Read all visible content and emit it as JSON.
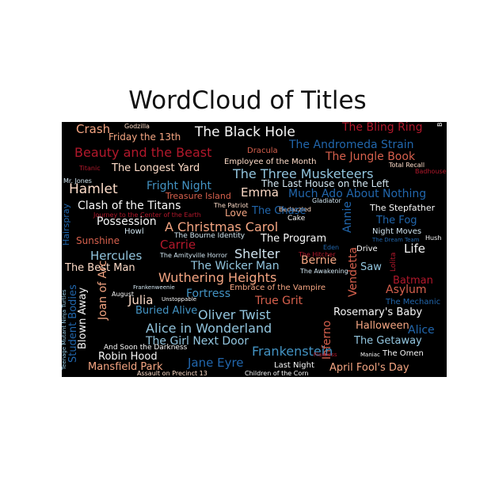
{
  "chart_data": {
    "type": "wordcloud",
    "title": "WordCloud of Titles",
    "colormap": [
      "#d6604d",
      "#f4a582",
      "#fddbc7",
      "#f7f7f7",
      "#d1e5f0",
      "#92c5de",
      "#4393c3",
      "#b2182b",
      "#2166ac"
    ],
    "words": [
      {
        "text": "Crash",
        "color": "#f4a582"
      },
      {
        "text": "Godzilla",
        "color": "#fddbc7"
      },
      {
        "text": "The Black Hole",
        "color": "#f7f7f7"
      },
      {
        "text": "The Bling Ring",
        "color": "#b2182b"
      },
      {
        "text": "Friday the 13th",
        "color": "#f4a582"
      },
      {
        "text": "The Andromeda Strain",
        "color": "#2166ac"
      },
      {
        "text": "Beowulf",
        "color": "#f7f7f7"
      },
      {
        "text": "Beauty and the Beast",
        "color": "#b2182b"
      },
      {
        "text": "Dracula",
        "color": "#d6604d"
      },
      {
        "text": "The Jungle Book",
        "color": "#d6604d"
      },
      {
        "text": "Employee of the Month",
        "color": "#fddbc7"
      },
      {
        "text": "Total Recall",
        "color": "#fddbc7"
      },
      {
        "text": "Titanic",
        "color": "#b2182b"
      },
      {
        "text": "The Longest Yard",
        "color": "#fddbc7"
      },
      {
        "text": "The Three Musketeers",
        "color": "#92c5de"
      },
      {
        "text": "Badhouse",
        "color": "#b2182b"
      },
      {
        "text": "Mr. Jones",
        "color": "#d1e5f0"
      },
      {
        "text": "Fright Night",
        "color": "#4393c3"
      },
      {
        "text": "The Last House on the Left",
        "color": "#d1e5f0"
      },
      {
        "text": "Hamlet",
        "color": "#fddbc7"
      },
      {
        "text": "Treasure Island",
        "color": "#d6604d"
      },
      {
        "text": "Emma",
        "color": "#fddbc7"
      },
      {
        "text": "Much Ado About Nothing",
        "color": "#2166ac"
      },
      {
        "text": "Gladiator",
        "color": "#d1e5f0"
      },
      {
        "text": "Cake",
        "color": "#f7f7f7"
      },
      {
        "text": "Clash of the Titans",
        "color": "#f7f7f7"
      },
      {
        "text": "The Patriot",
        "color": "#fddbc7"
      },
      {
        "text": "Bedazzled",
        "color": "#fddbc7"
      },
      {
        "text": "The Stepfather",
        "color": "#f7f7f7"
      },
      {
        "text": "Journey to the Center of the Earth",
        "color": "#b2182b"
      },
      {
        "text": "The Chase",
        "color": "#2166ac"
      },
      {
        "text": "Love",
        "color": "#f4a582"
      },
      {
        "text": "Hairspray",
        "color": "#2166ac"
      },
      {
        "text": "Possession",
        "color": "#f7f7f7"
      },
      {
        "text": "Annie",
        "color": "#2166ac"
      },
      {
        "text": "The Fog",
        "color": "#2166ac"
      },
      {
        "text": "A Christmas Carol",
        "color": "#f4a582"
      },
      {
        "text": "Night Moves",
        "color": "#d1e5f0"
      },
      {
        "text": "Howl",
        "color": "#d1e5f0"
      },
      {
        "text": "The Dream Team",
        "color": "#2166ac"
      },
      {
        "text": "Hush",
        "color": "#f7f7f7"
      },
      {
        "text": "Sunshine",
        "color": "#d6604d"
      },
      {
        "text": "The Bourne Identity",
        "color": "#d1e5f0"
      },
      {
        "text": "The Program",
        "color": "#f7f7f7"
      },
      {
        "text": "Carrie",
        "color": "#b2182b"
      },
      {
        "text": "Eden",
        "color": "#2166ac"
      },
      {
        "text": "Drive",
        "color": "#f7f7f7"
      },
      {
        "text": "Life",
        "color": "#f7f7f7"
      },
      {
        "text": "Hercules",
        "color": "#92c5de"
      },
      {
        "text": "The Amityville Horror",
        "color": "#d1e5f0"
      },
      {
        "text": "Shelter",
        "color": "#d1e5f0"
      },
      {
        "text": "The Hitcher",
        "color": "#b2182b"
      },
      {
        "text": "Lolita",
        "color": "#b2182b"
      },
      {
        "text": "The Best Man",
        "color": "#fddbc7"
      },
      {
        "text": "The Wicker Man",
        "color": "#92c5de"
      },
      {
        "text": "Bernie",
        "color": "#f4a582"
      },
      {
        "text": "Saw",
        "color": "#92c5de"
      },
      {
        "text": "Teenage Mutant Ninja Turtles",
        "color": "#92c5de"
      },
      {
        "text": "The Awakening",
        "color": "#d1e5f0"
      },
      {
        "text": "Vendetta",
        "color": "#d6604d"
      },
      {
        "text": "Joan of Arc",
        "color": "#f4a582"
      },
      {
        "text": "Wuthering Heights",
        "color": "#f4a582"
      },
      {
        "text": "Batman",
        "color": "#b2182b"
      },
      {
        "text": "Frankenweenie",
        "color": "#d1e5f0"
      },
      {
        "text": "Embrace of the Vampire",
        "color": "#f4a582"
      },
      {
        "text": "Asylum",
        "color": "#d6604d"
      },
      {
        "text": "Fortress",
        "color": "#4393c3"
      },
      {
        "text": "Unstoppable",
        "color": "#f7f7f7"
      },
      {
        "text": "Julia",
        "color": "#fddbc7"
      },
      {
        "text": "August",
        "color": "#f7f7f7"
      },
      {
        "text": "Student Bodies",
        "color": "#2166ac"
      },
      {
        "text": "True Grit",
        "color": "#d6604d"
      },
      {
        "text": "The Mechanic",
        "color": "#2166ac"
      },
      {
        "text": "Buried Alive",
        "color": "#4393c3"
      },
      {
        "text": "Oliver Twist",
        "color": "#92c5de"
      },
      {
        "text": "Rosemary's Baby",
        "color": "#f7f7f7"
      },
      {
        "text": "Blown Away",
        "color": "#f7f7f7"
      },
      {
        "text": "Inferno",
        "color": "#d6604d"
      },
      {
        "text": "Alice in Wonderland",
        "color": "#92c5de"
      },
      {
        "text": "Halloween",
        "color": "#f4a582"
      },
      {
        "text": "Alice",
        "color": "#2166ac"
      },
      {
        "text": "The Girl Next Door",
        "color": "#92c5de"
      },
      {
        "text": "The Getaway",
        "color": "#92c5de"
      },
      {
        "text": "And Soon the Darkness",
        "color": "#f7f7f7"
      },
      {
        "text": "Frankenstein",
        "color": "#4393c3"
      },
      {
        "text": "Maniac",
        "color": "#f7f7f7"
      },
      {
        "text": "The Omen",
        "color": "#f7f7f7"
      },
      {
        "text": "Flawless",
        "color": "#b2182b"
      },
      {
        "text": "Robin Hood",
        "color": "#f7f7f7"
      },
      {
        "text": "Jane Eyre",
        "color": "#2166ac"
      },
      {
        "text": "Last Night",
        "color": "#f7f7f7"
      },
      {
        "text": "Mansfield Park",
        "color": "#f4a582"
      },
      {
        "text": "April Fool's Day",
        "color": "#f4a582"
      },
      {
        "text": "Assault on Precinct 13",
        "color": "#fddbc7"
      },
      {
        "text": "Children of the Corn",
        "color": "#f7f7f7"
      }
    ]
  }
}
